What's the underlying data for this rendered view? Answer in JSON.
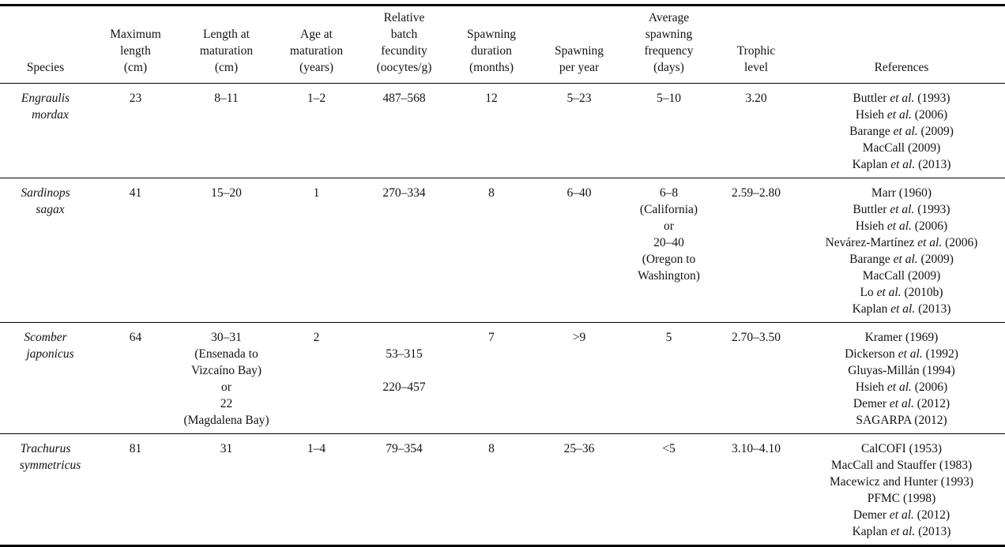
{
  "colors": {
    "text": "#131313",
    "rule": "#000000",
    "background": "#ffffff"
  },
  "table": {
    "columns": [
      {
        "id": "species",
        "label_lines": [
          "Species"
        ]
      },
      {
        "id": "max-length",
        "label_lines": [
          "Maximum",
          "length",
          "(cm)"
        ]
      },
      {
        "id": "length-at-maturation",
        "label_lines": [
          "Length at",
          "maturation",
          "(cm)"
        ]
      },
      {
        "id": "age-at-maturation",
        "label_lines": [
          "Age at",
          "maturation",
          "(years)"
        ]
      },
      {
        "id": "fecundity",
        "label_lines": [
          "Relative",
          "batch",
          "fecundity",
          "(oocytes/g)"
        ]
      },
      {
        "id": "spawning-duration",
        "label_lines": [
          "Spawning",
          "duration",
          "(months)"
        ]
      },
      {
        "id": "spawning-per-year",
        "label_lines": [
          "Spawning",
          "per year"
        ]
      },
      {
        "id": "spawning-frequency",
        "label_lines": [
          "Average",
          "spawning",
          "frequency",
          "(days)"
        ]
      },
      {
        "id": "trophic-level",
        "label_lines": [
          "Trophic",
          "level"
        ]
      },
      {
        "id": "references",
        "label_lines": [
          "References"
        ]
      }
    ],
    "rows": [
      {
        "cells": [
          [
            "Engraulis",
            "mordax"
          ],
          [
            "23"
          ],
          [
            "8–11"
          ],
          [
            "1–2"
          ],
          [
            "487–568"
          ],
          [
            "12"
          ],
          [
            "5–23"
          ],
          [
            "5–10"
          ],
          [
            "3.20"
          ],
          [
            "Buttler et al. (1993)",
            "Hsieh et al. (2006)",
            "Barange et al. (2009)",
            "MacCall (2009)",
            "Kaplan et al. (2013)"
          ]
        ]
      },
      {
        "cells": [
          [
            "Sardinops",
            "sagax"
          ],
          [
            "41"
          ],
          [
            "15–20"
          ],
          [
            "1"
          ],
          [
            "270–334"
          ],
          [
            "8"
          ],
          [
            "6–40"
          ],
          [
            "6–8",
            "(California)",
            "or",
            "20–40",
            "(Oregon to",
            "Washington)"
          ],
          [
            "2.59–2.80"
          ],
          [
            "Marr (1960)",
            "Buttler et al. (1993)",
            "Hsieh et al. (2006)",
            "Nevárez-Martínez et al. (2006)",
            "Barange et al. (2009)",
            "MacCall (2009)",
            "Lo et al. (2010b)",
            "Kaplan et al. (2013)"
          ]
        ]
      },
      {
        "cells": [
          [
            "Scomber",
            "japonicus"
          ],
          [
            "64"
          ],
          [
            "30–31",
            "(Ensenada to",
            "Vizcaíno Bay)",
            "or",
            "22",
            "(Magdalena Bay)"
          ],
          [
            "2"
          ],
          [
            "",
            "53–315",
            "",
            "220–457"
          ],
          [
            "7"
          ],
          [
            ">9"
          ],
          [
            "5"
          ],
          [
            "2.70–3.50"
          ],
          [
            "Kramer (1969)",
            "Dickerson et al. (1992)",
            "Gluyas-Millán (1994)",
            "Hsieh et al. (2006)",
            "Demer et al. (2012)",
            "SAGARPA (2012)"
          ]
        ]
      },
      {
        "cells": [
          [
            "Trachurus",
            "symmetricus"
          ],
          [
            "81"
          ],
          [
            "31"
          ],
          [
            "1–4"
          ],
          [
            "79–354"
          ],
          [
            "8"
          ],
          [
            "25–36"
          ],
          [
            "<5"
          ],
          [
            "3.10–4.10"
          ],
          [
            "CalCOFI (1953)",
            "MacCall and Stauffer (1983)",
            "Macewicz and Hunter (1993)",
            "PFMC (1998)",
            "Demer et al. (2012)",
            "Kaplan et al. (2013)"
          ]
        ]
      }
    ]
  }
}
